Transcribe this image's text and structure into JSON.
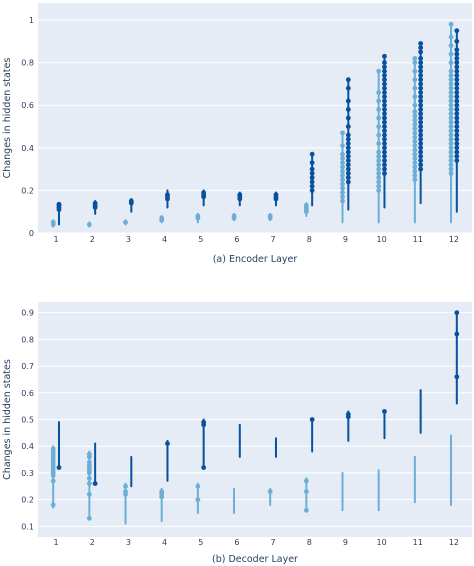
{
  "colors": {
    "light": "#6baed6",
    "dark": "#08519c",
    "plot_bg": "#e5ecf6",
    "grid": "#ffffff"
  },
  "chart_data": [
    {
      "type": "scatter",
      "caption": "(a) Encoder Layer",
      "ylabel": "Changes in hidden states",
      "ylim": [
        0,
        1.08
      ],
      "yticks": [
        0,
        0.2,
        0.4,
        0.6,
        0.8,
        1
      ],
      "categories": [
        "1",
        "2",
        "3",
        "4",
        "5",
        "6",
        "7",
        "8",
        "9",
        "10",
        "11",
        "12"
      ],
      "series": [
        {
          "color_key": "light",
          "points": [
            {
              "range": [
                0.03,
                0.06
              ],
              "dots": [
                0.04,
                0.05
              ]
            },
            {
              "range": [
                0.03,
                0.05
              ],
              "dots": [
                0.04
              ]
            },
            {
              "range": [
                0.04,
                0.06
              ],
              "dots": [
                0.05
              ]
            },
            {
              "range": [
                0.05,
                0.08
              ],
              "dots": [
                0.06,
                0.07
              ]
            },
            {
              "range": [
                0.05,
                0.09
              ],
              "dots": [
                0.07,
                0.08
              ]
            },
            {
              "range": [
                0.06,
                0.09
              ],
              "dots": [
                0.07,
                0.08
              ]
            },
            {
              "range": [
                0.06,
                0.09
              ],
              "dots": [
                0.07,
                0.08
              ]
            },
            {
              "range": [
                0.08,
                0.14
              ],
              "dots": [
                0.1,
                0.11,
                0.12,
                0.13
              ]
            },
            {
              "range": [
                0.05,
                0.47
              ],
              "dots": [
                0.15,
                0.17,
                0.19,
                0.21,
                0.23,
                0.25,
                0.27,
                0.29,
                0.31,
                0.33,
                0.35,
                0.37,
                0.41,
                0.47
              ]
            },
            {
              "range": [
                0.05,
                0.76
              ],
              "dots": [
                0.2,
                0.22,
                0.24,
                0.26,
                0.28,
                0.3,
                0.32,
                0.34,
                0.36,
                0.38,
                0.42,
                0.46,
                0.5,
                0.54,
                0.58,
                0.62,
                0.66,
                0.76
              ]
            },
            {
              "range": [
                0.05,
                0.82
              ],
              "dots": [
                0.25,
                0.27,
                0.29,
                0.31,
                0.33,
                0.35,
                0.37,
                0.39,
                0.41,
                0.43,
                0.45,
                0.47,
                0.49,
                0.51,
                0.53,
                0.55,
                0.57,
                0.6,
                0.64,
                0.68,
                0.72,
                0.76,
                0.8,
                0.82
              ]
            },
            {
              "range": [
                0.05,
                0.98
              ],
              "dots": [
                0.28,
                0.3,
                0.32,
                0.34,
                0.36,
                0.38,
                0.4,
                0.42,
                0.44,
                0.46,
                0.48,
                0.5,
                0.52,
                0.54,
                0.56,
                0.58,
                0.6,
                0.62,
                0.64,
                0.66,
                0.68,
                0.7,
                0.72,
                0.74,
                0.76,
                0.8,
                0.84,
                0.88,
                0.92,
                0.98
              ]
            }
          ]
        },
        {
          "color_key": "dark",
          "points": [
            {
              "range": [
                0.04,
                0.14
              ],
              "dots": [
                0.11,
                0.12,
                0.13,
                0.135
              ]
            },
            {
              "range": [
                0.09,
                0.15
              ],
              "dots": [
                0.12,
                0.13,
                0.14
              ]
            },
            {
              "range": [
                0.1,
                0.16
              ],
              "dots": [
                0.14,
                0.15
              ]
            },
            {
              "range": [
                0.12,
                0.2
              ],
              "dots": [
                0.16,
                0.17,
                0.18
              ]
            },
            {
              "range": [
                0.13,
                0.2
              ],
              "dots": [
                0.17,
                0.18,
                0.19
              ]
            },
            {
              "range": [
                0.13,
                0.19
              ],
              "dots": [
                0.16,
                0.17,
                0.18
              ]
            },
            {
              "range": [
                0.13,
                0.19
              ],
              "dots": [
                0.16,
                0.17,
                0.18
              ]
            },
            {
              "range": [
                0.13,
                0.37
              ],
              "dots": [
                0.2,
                0.22,
                0.24,
                0.26,
                0.28,
                0.3,
                0.33,
                0.37
              ]
            },
            {
              "range": [
                0.11,
                0.72
              ],
              "dots": [
                0.24,
                0.26,
                0.28,
                0.3,
                0.32,
                0.34,
                0.36,
                0.38,
                0.4,
                0.42,
                0.44,
                0.46,
                0.5,
                0.54,
                0.58,
                0.62,
                0.68,
                0.72
              ]
            },
            {
              "range": [
                0.12,
                0.83
              ],
              "dots": [
                0.28,
                0.3,
                0.32,
                0.34,
                0.36,
                0.38,
                0.4,
                0.42,
                0.44,
                0.46,
                0.48,
                0.5,
                0.52,
                0.54,
                0.56,
                0.58,
                0.6,
                0.62,
                0.64,
                0.66,
                0.68,
                0.7,
                0.72,
                0.74,
                0.76,
                0.78,
                0.8,
                0.83
              ]
            },
            {
              "range": [
                0.14,
                0.89
              ],
              "dots": [
                0.3,
                0.32,
                0.34,
                0.36,
                0.38,
                0.4,
                0.42,
                0.44,
                0.46,
                0.48,
                0.5,
                0.52,
                0.54,
                0.56,
                0.58,
                0.6,
                0.62,
                0.64,
                0.66,
                0.68,
                0.7,
                0.72,
                0.74,
                0.76,
                0.78,
                0.8,
                0.82,
                0.85,
                0.87,
                0.89
              ]
            },
            {
              "range": [
                0.1,
                0.95
              ],
              "dots": [
                0.34,
                0.36,
                0.38,
                0.4,
                0.42,
                0.44,
                0.46,
                0.48,
                0.5,
                0.52,
                0.54,
                0.56,
                0.58,
                0.6,
                0.62,
                0.64,
                0.66,
                0.68,
                0.7,
                0.72,
                0.74,
                0.76,
                0.78,
                0.8,
                0.82,
                0.84,
                0.86,
                0.9,
                0.95
              ]
            }
          ]
        }
      ]
    },
    {
      "type": "scatter",
      "caption": "(b) Decoder Layer",
      "ylabel": "Changes in hidden states",
      "ylim": [
        0.06,
        0.94
      ],
      "yticks": [
        0.1,
        0.2,
        0.3,
        0.4,
        0.5,
        0.6,
        0.7,
        0.8,
        0.9
      ],
      "categories": [
        "1",
        "2",
        "3",
        "4",
        "5",
        "6",
        "7",
        "8",
        "9",
        "10",
        "11",
        "12"
      ],
      "series": [
        {
          "color_key": "light",
          "points": [
            {
              "range": [
                0.17,
                0.4
              ],
              "dots": [
                0.18,
                0.27,
                0.29,
                0.3,
                0.31,
                0.32,
                0.33,
                0.34,
                0.35,
                0.36,
                0.37,
                0.38,
                0.39
              ]
            },
            {
              "range": [
                0.13,
                0.38
              ],
              "dots": [
                0.13,
                0.22,
                0.26,
                0.28,
                0.3,
                0.31,
                0.32,
                0.33,
                0.34,
                0.36,
                0.37
              ]
            },
            {
              "range": [
                0.11,
                0.26
              ],
              "dots": [
                0.22,
                0.23,
                0.25
              ]
            },
            {
              "range": [
                0.12,
                0.24
              ],
              "dots": [
                0.21,
                0.22,
                0.23
              ]
            },
            {
              "range": [
                0.15,
                0.26
              ],
              "dots": [
                0.2,
                0.25
              ]
            },
            {
              "range": [
                0.15,
                0.24
              ],
              "dots": []
            },
            {
              "range": [
                0.18,
                0.24
              ],
              "dots": [
                0.23
              ]
            },
            {
              "range": [
                0.16,
                0.28
              ],
              "dots": [
                0.16,
                0.23,
                0.27
              ]
            },
            {
              "range": [
                0.16,
                0.3
              ],
              "dots": []
            },
            {
              "range": [
                0.16,
                0.31
              ],
              "dots": []
            },
            {
              "range": [
                0.19,
                0.36
              ],
              "dots": []
            },
            {
              "range": [
                0.18,
                0.44
              ],
              "dots": []
            }
          ]
        },
        {
          "color_key": "dark",
          "points": [
            {
              "range": [
                0.32,
                0.49
              ],
              "dots": [
                0.32
              ]
            },
            {
              "range": [
                0.26,
                0.41
              ],
              "dots": [
                0.26
              ]
            },
            {
              "range": [
                0.25,
                0.36
              ],
              "dots": []
            },
            {
              "range": [
                0.27,
                0.42
              ],
              "dots": [
                0.41
              ]
            },
            {
              "range": [
                0.32,
                0.5
              ],
              "dots": [
                0.32,
                0.48,
                0.49
              ]
            },
            {
              "range": [
                0.36,
                0.48
              ],
              "dots": []
            },
            {
              "range": [
                0.36,
                0.43
              ],
              "dots": []
            },
            {
              "range": [
                0.38,
                0.5
              ],
              "dots": [
                0.5
              ]
            },
            {
              "range": [
                0.42,
                0.53
              ],
              "dots": [
                0.51,
                0.52
              ]
            },
            {
              "range": [
                0.43,
                0.53
              ],
              "dots": [
                0.53
              ]
            },
            {
              "range": [
                0.45,
                0.61
              ],
              "dots": []
            },
            {
              "range": [
                0.56,
                0.9
              ],
              "dots": [
                0.66,
                0.82,
                0.9
              ]
            }
          ]
        }
      ]
    }
  ]
}
